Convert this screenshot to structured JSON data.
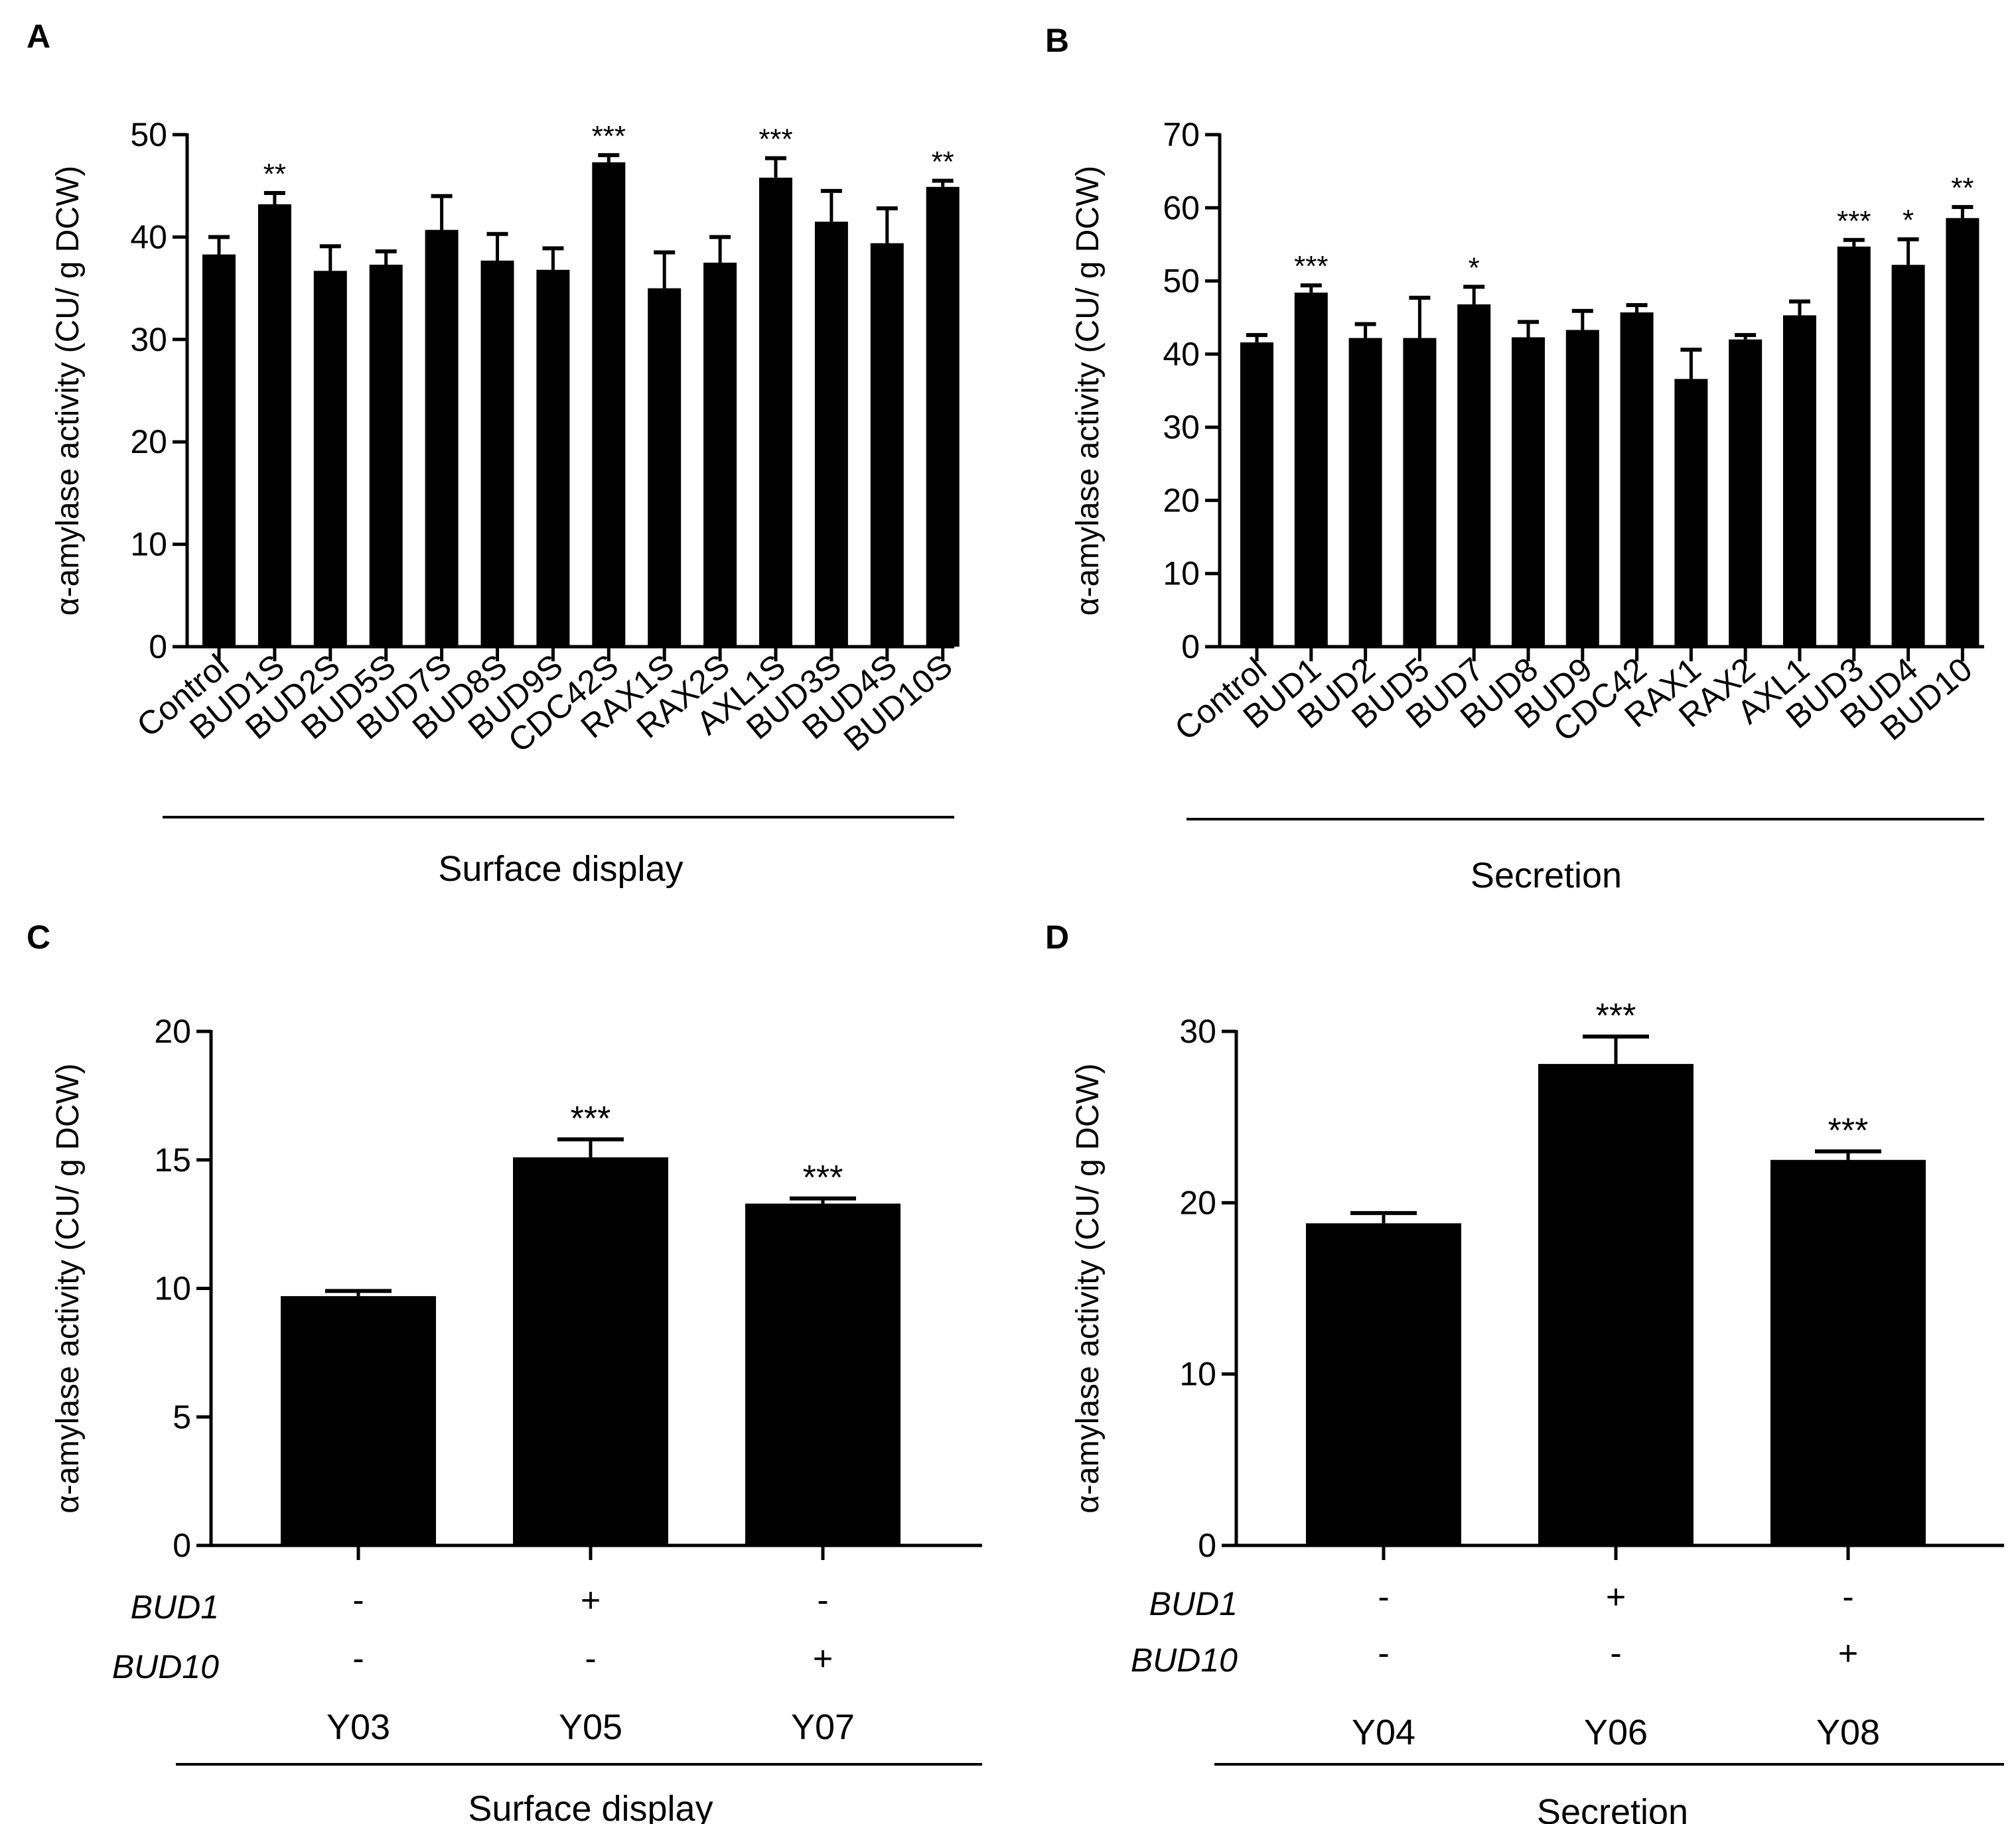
{
  "figure": {
    "panels": [
      "A",
      "B",
      "C",
      "D"
    ]
  },
  "chart_data": [
    {
      "panel": "A",
      "type": "bar",
      "ylabel": "α-amylase activity (CU/ g DCW)",
      "xlabel": "Surface display",
      "ylim": [
        0,
        50
      ],
      "yticks": [
        0,
        10,
        20,
        30,
        40,
        50
      ],
      "categories": [
        "Control",
        "BUD1S",
        "BUD2S",
        "BUD5S",
        "BUD7S",
        "BUD8S",
        "BUD9S",
        "CDC42S",
        "RAX1S",
        "RAX2S",
        "AXL1S",
        "BUD3S",
        "BUD4S",
        "BUD10S"
      ],
      "values": [
        38.3,
        43.2,
        36.7,
        37.3,
        40.7,
        37.7,
        36.8,
        47.3,
        35.0,
        37.5,
        45.8,
        41.5,
        39.4,
        44.9
      ],
      "errors": [
        1.7,
        1.1,
        2.4,
        1.3,
        3.3,
        2.6,
        2.1,
        0.7,
        3.5,
        2.5,
        1.9,
        3.0,
        3.4,
        0.6
      ],
      "significance": [
        "",
        "**",
        "",
        "",
        "",
        "",
        "",
        "***",
        "",
        "",
        "***",
        "",
        "",
        "**"
      ]
    },
    {
      "panel": "B",
      "type": "bar",
      "ylabel": "α-amylase activity (CU/ g DCW)",
      "xlabel": "Secretion",
      "ylim": [
        0,
        70
      ],
      "yticks": [
        0,
        10,
        20,
        30,
        40,
        50,
        60,
        70
      ],
      "categories": [
        "Control",
        "BUD1",
        "BUD2",
        "BUD5",
        "BUD7",
        "BUD8",
        "BUD9",
        "CDC42",
        "RAX1",
        "RAX2",
        "AXL1",
        "BUD3",
        "BUD4",
        "BUD10"
      ],
      "values": [
        41.6,
        48.4,
        42.2,
        42.2,
        46.8,
        42.3,
        43.3,
        45.7,
        36.6,
        42.0,
        45.3,
        54.7,
        52.2,
        58.6
      ],
      "errors": [
        1.0,
        1.0,
        1.9,
        5.5,
        2.4,
        2.1,
        2.6,
        1.0,
        4.0,
        0.6,
        1.9,
        0.9,
        3.5,
        1.5
      ],
      "significance": [
        "",
        "***",
        "",
        "",
        "*",
        "",
        "",
        "",
        "",
        "",
        "",
        "***",
        "*",
        "**"
      ]
    },
    {
      "panel": "C",
      "type": "bar",
      "ylabel": "α-amylase activity (CU/ g DCW)",
      "xlabel": "Surface display",
      "ylim": [
        0,
        20
      ],
      "yticks": [
        0,
        5,
        10,
        15,
        20
      ],
      "categories": [
        "Y03",
        "Y05",
        "Y07"
      ],
      "values": [
        9.7,
        15.1,
        13.3
      ],
      "errors": [
        0.2,
        0.7,
        0.2
      ],
      "significance": [
        "",
        "***",
        "***"
      ],
      "genotype_rows": [
        {
          "label": "BUD1",
          "values": [
            "-",
            "+",
            "-"
          ]
        },
        {
          "label": "BUD10",
          "values": [
            "-",
            "-",
            "+"
          ]
        }
      ]
    },
    {
      "panel": "D",
      "type": "bar",
      "ylabel": "α-amylase activity (CU/ g DCW)",
      "xlabel": "Secretion",
      "ylim": [
        0,
        30
      ],
      "yticks": [
        0,
        10,
        20,
        30
      ],
      "categories": [
        "Y04",
        "Y06",
        "Y08"
      ],
      "values": [
        18.8,
        28.1,
        22.5
      ],
      "errors": [
        0.6,
        1.6,
        0.5
      ],
      "significance": [
        "",
        "***",
        "***"
      ],
      "genotype_rows": [
        {
          "label": "BUD1",
          "values": [
            "-",
            "+",
            "-"
          ]
        },
        {
          "label": "BUD10",
          "values": [
            "-",
            "-",
            "+"
          ]
        }
      ]
    }
  ]
}
